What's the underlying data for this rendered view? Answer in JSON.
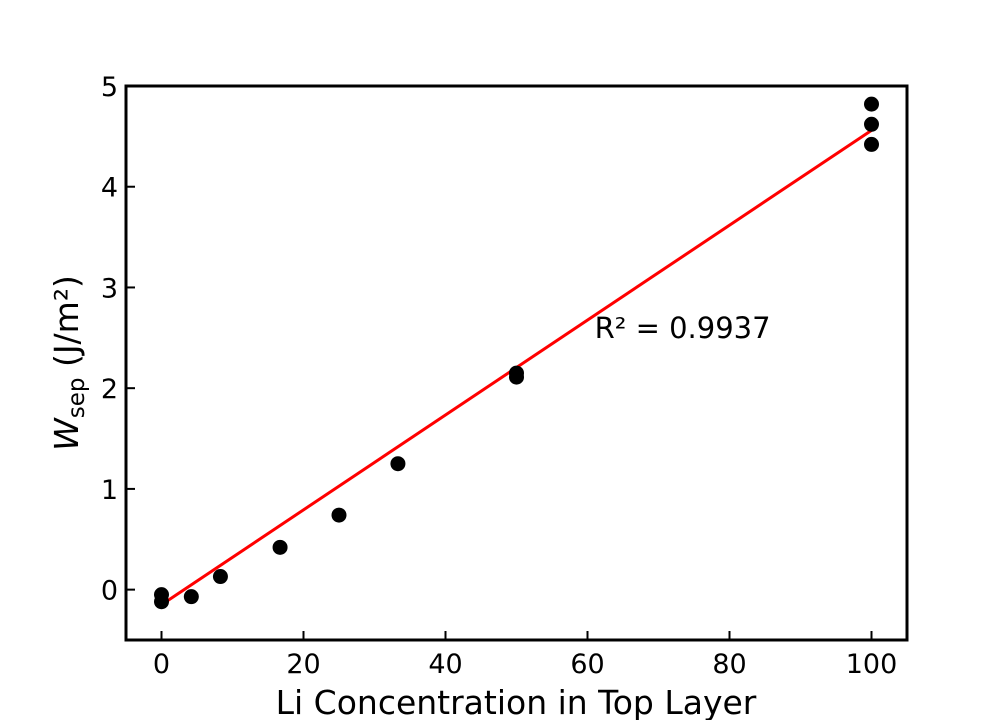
{
  "chart_data": {
    "type": "scatter",
    "xlabel": "Li Concentration in Top Layer",
    "ylabel_main": "W",
    "ylabel_sub": "sep",
    "ylabel_unit": " (J/m²)",
    "xlim": [
      -5,
      105
    ],
    "ylim": [
      -0.5,
      5
    ],
    "xticks": [
      0,
      20,
      40,
      60,
      80,
      100
    ],
    "yticks": [
      0,
      1,
      2,
      3,
      4,
      5
    ],
    "xtick_labels": [
      "0",
      "20",
      "40",
      "60",
      "80",
      "100"
    ],
    "ytick_labels": [
      "0",
      "1",
      "2",
      "3",
      "4",
      "5"
    ],
    "points": [
      {
        "x": 0,
        "y": -0.05
      },
      {
        "x": 0,
        "y": -0.12
      },
      {
        "x": 4.2,
        "y": -0.07
      },
      {
        "x": 8.3,
        "y": 0.13
      },
      {
        "x": 16.7,
        "y": 0.42
      },
      {
        "x": 25,
        "y": 0.74
      },
      {
        "x": 33.3,
        "y": 1.25
      },
      {
        "x": 50,
        "y": 2.11
      },
      {
        "x": 50,
        "y": 2.15
      },
      {
        "x": 100,
        "y": 4.42
      },
      {
        "x": 100,
        "y": 4.62
      },
      {
        "x": 100,
        "y": 4.82
      }
    ],
    "fit_line": {
      "x": [
        0,
        100
      ],
      "y": [
        -0.15,
        4.56
      ],
      "color": "#ff0000"
    },
    "annotation": {
      "text": "R² = 0.9937",
      "x": 61,
      "y": 2.5
    },
    "marker_color": "#000000",
    "grid": false,
    "legend": "none"
  }
}
